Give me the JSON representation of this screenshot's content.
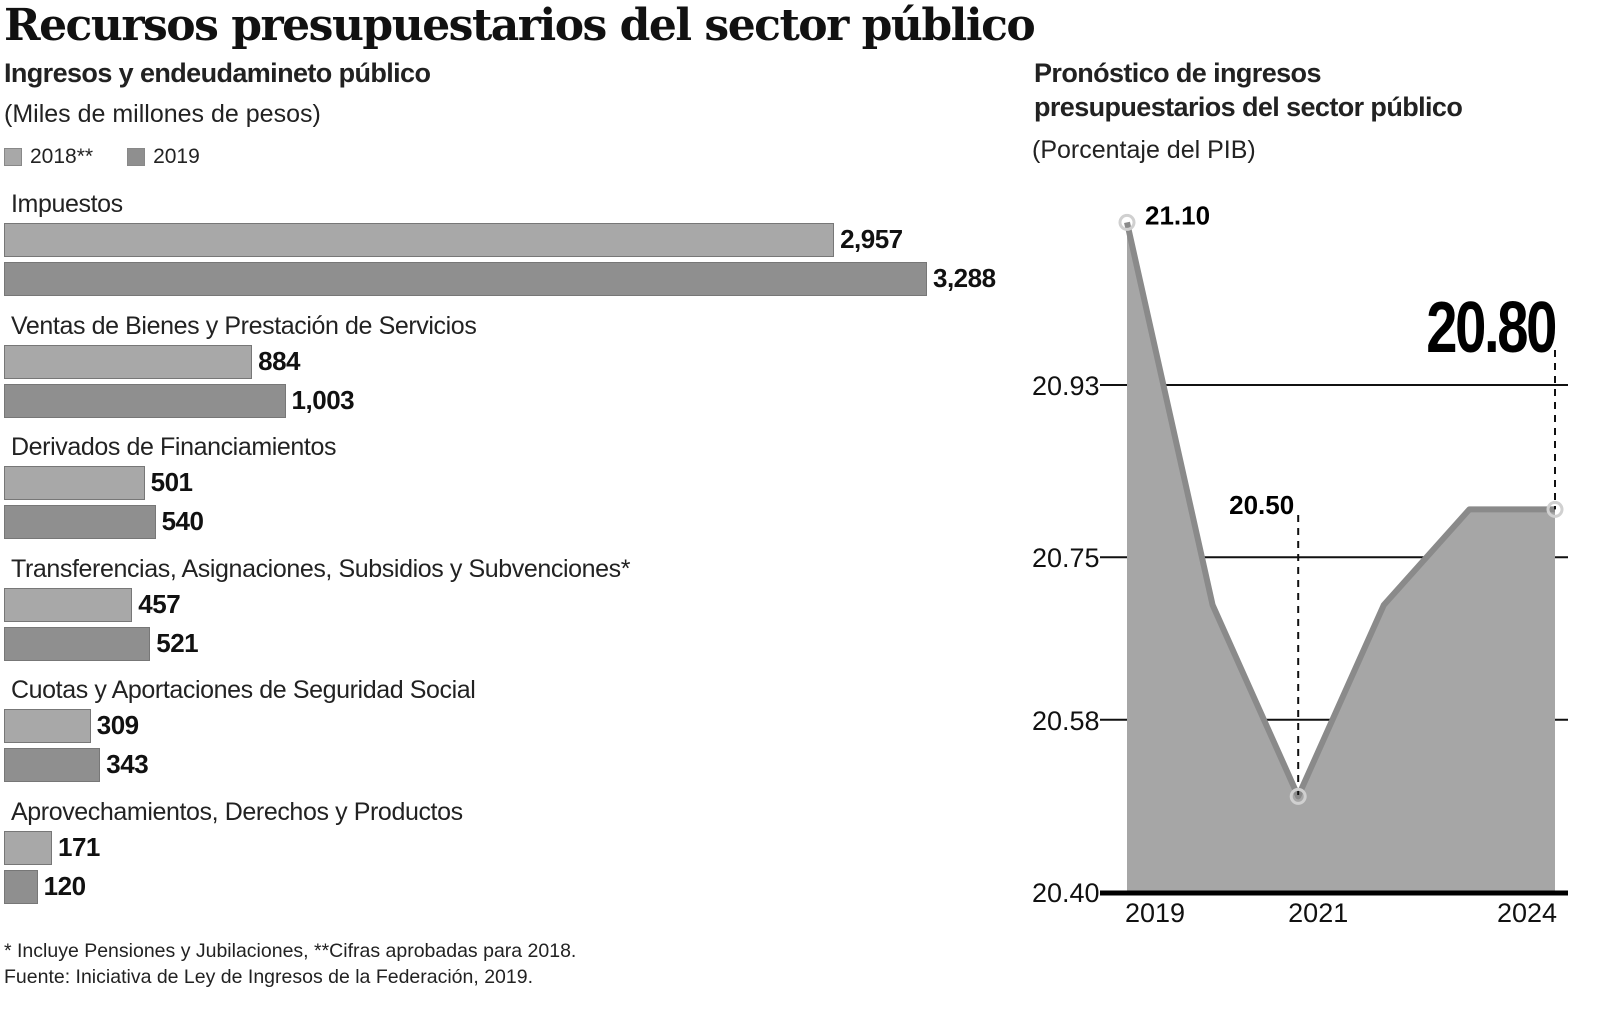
{
  "title": "Recursos presupuestarios del sector público",
  "left_panel": {
    "subtitle": "Ingresos y endeudamineto público",
    "unit": "(Miles de millones de pesos)",
    "legend": [
      {
        "label": "2018**",
        "color": "#a8a8a8"
      },
      {
        "label": "2019",
        "color": "#8f8f8f"
      }
    ]
  },
  "right_panel": {
    "subtitle_line1": "Pronóstico de ingresos",
    "subtitle_line2": "presupuestarios del sector público",
    "unit": "(Porcentaje del PIB)"
  },
  "footnotes": {
    "line1": "* Incluye Pensiones y Jubilaciones, **Cifras aprobadas para 2018.",
    "line2": "Fuente: Iniciativa de Ley de Ingresos de la Federación, 2019."
  },
  "chart_data": [
    {
      "type": "bar",
      "orientation": "horizontal",
      "title": "Ingresos y endeudamineto público",
      "subtitle": "(Miles de millones de pesos)",
      "categories": [
        "Impuestos",
        "Ventas de Bienes y Prestación de Servicios",
        "Derivados de Financiamientos",
        "Transferencias, Asignaciones, Subsidios y Subvenciones*",
        "Cuotas y Aportaciones de Seguridad Social",
        "Aprovechamientos, Derechos y Productos"
      ],
      "series": [
        {
          "name": "2018**",
          "color": "#a8a8a8",
          "values": [
            2957,
            884,
            501,
            457,
            309,
            171
          ],
          "labels": [
            "2,957",
            "884",
            "501",
            "457",
            "309",
            "171"
          ]
        },
        {
          "name": "2019",
          "color": "#8f8f8f",
          "values": [
            3288,
            1003,
            540,
            521,
            343,
            120
          ],
          "labels": [
            "3,288",
            "1,003",
            "540",
            "521",
            "343",
            "120"
          ]
        }
      ],
      "legend": "top-left",
      "grid": false
    },
    {
      "type": "area",
      "title": "Pronóstico de ingresos presupuestarios del sector público",
      "subtitle": "(Porcentaje del PIB)",
      "x": [
        2019,
        2020,
        2021,
        2022,
        2023,
        2024
      ],
      "values": [
        21.1,
        20.7,
        20.5,
        20.7,
        20.8,
        20.8
      ],
      "x_tick_labels": [
        "2019",
        "2021",
        "2024"
      ],
      "x_ticks": [
        2019,
        2021,
        2024
      ],
      "y_tick_labels": [
        "20.40",
        "20.58",
        "20.75",
        "20.93"
      ],
      "y_ticks": [
        20.4,
        20.58,
        20.75,
        20.93
      ],
      "ylim": [
        20.4,
        21.1
      ],
      "grid": true,
      "fill_color": "#a6a6a6",
      "line_color": "#8a8a8a",
      "annotations": [
        {
          "x": 2019,
          "y": 21.1,
          "label": "21.10",
          "style": "bold"
        },
        {
          "x": 2021,
          "y": 20.5,
          "label": "20.50",
          "style": "bold"
        },
        {
          "x": 2024,
          "y": 20.8,
          "label": "20.80",
          "style": "highlight"
        }
      ]
    }
  ]
}
